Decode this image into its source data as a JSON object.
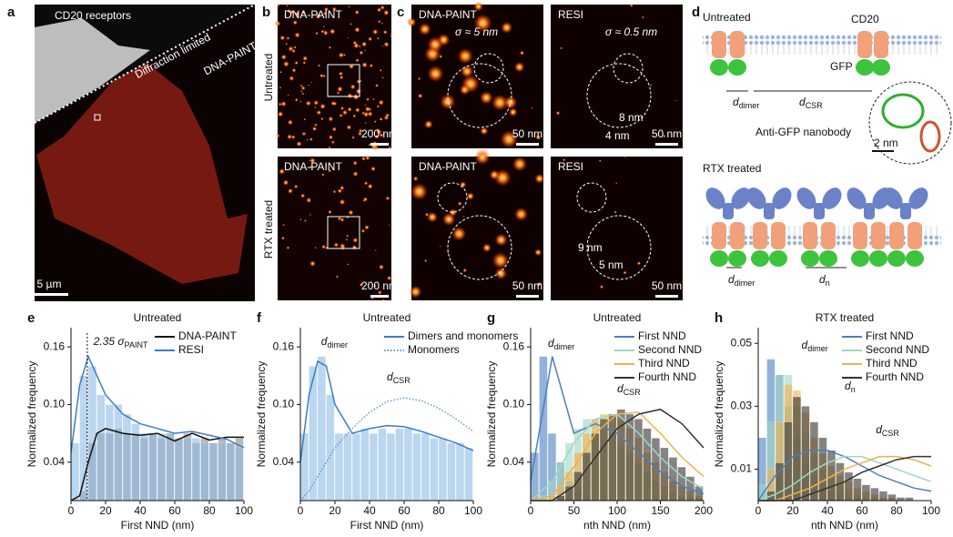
{
  "panels": {
    "a": {
      "label": "a",
      "receptors": "CD20 receptors",
      "diffraction": "Diffraction limited",
      "paint": "DNA-PAINT",
      "scale": "5 µm"
    },
    "b": {
      "label": "b",
      "top_title": "DNA-PAINT",
      "bottom_title": "DNA-PAINT",
      "untreated": "Untreated",
      "rtx": "RTX treated",
      "scale_top": "200 nm",
      "scale_bottom": "200 nm"
    },
    "c": {
      "label": "c",
      "paint_top": "DNA-PAINT",
      "resi_top": "RESI",
      "sigma_paint": "σ ≈ 5 nm",
      "sigma_resi": "σ ≈ 0.5 nm",
      "paint_bottom": "DNA-PAINT",
      "resi_bottom": "RESI",
      "scales": [
        "50 nm",
        "50 nm",
        "50 nm",
        "50 nm"
      ],
      "distances": [
        "8 nm",
        "4 nm",
        "9 nm",
        "5 nm"
      ]
    },
    "d": {
      "label": "d",
      "untreated": "Untreated",
      "cd20": "CD20",
      "gfp": "GFP",
      "d_dimer_top": {
        "main": "d",
        "sub": "dimer"
      },
      "d_csr": {
        "main": "d",
        "sub": "CSR"
      },
      "nanobody": "Anti-GFP nanobody",
      "scale": "2 nm",
      "rtx": "RTX treated",
      "d_dimer_bottom": {
        "main": "d",
        "sub": "dimer"
      },
      "d_n": {
        "main": "d",
        "sub": "n"
      }
    }
  },
  "chart_data": [
    {
      "type": "histogram",
      "label": "e",
      "title": "Untreated",
      "xlabel": "First NND (nm)",
      "ylabel": "Normalized frequency",
      "xlim": [
        0,
        100
      ],
      "xticks": [
        0,
        20,
        40,
        60,
        80,
        100
      ],
      "ylim": [
        0,
        0.18
      ],
      "yticks": [
        0.04,
        {
          "value": 0.1,
          "label": "0.10"
        },
        0.16
      ],
      "legend": "upper right",
      "bins": [
        0,
        5,
        10,
        15,
        20,
        25,
        30,
        35,
        40,
        45,
        50,
        55,
        60,
        65,
        70,
        75,
        80,
        85,
        90,
        95,
        100
      ],
      "series": [
        {
          "name": "DNA-PAINT",
          "color": "#111111",
          "bar_color": "#8a8a8a",
          "values": [
            0,
            0.01,
            0.06,
            0.07,
            0.07,
            0.075,
            0.07,
            0.07,
            0.065,
            0.07,
            0.065,
            0.07,
            0.065,
            0.07,
            0.06,
            0.065,
            0.06,
            0.065,
            0.06,
            0.065
          ],
          "fit_x": [
            0,
            5,
            10,
            15,
            20,
            30,
            40,
            50,
            60,
            70,
            80,
            90,
            100
          ],
          "fit": [
            0,
            0.005,
            0.04,
            0.07,
            0.075,
            0.07,
            0.068,
            0.07,
            0.062,
            0.07,
            0.063,
            0.066,
            0.066
          ]
        },
        {
          "name": "RESI",
          "color": "#3a7dc9",
          "bar_color": "#8fbbe6",
          "values": [
            0.06,
            0.13,
            0.14,
            0.11,
            0.1,
            0.1,
            0.09,
            0.08,
            0.07,
            0.07,
            0.07,
            0.07,
            0.065,
            0.065,
            0.065,
            0.06,
            0.06,
            0.06,
            0.06,
            0.055
          ],
          "fit_x": [
            0,
            5,
            10,
            15,
            20,
            30,
            40,
            50,
            60,
            70,
            80,
            90,
            100
          ],
          "fit": [
            0.05,
            0.12,
            0.15,
            0.13,
            0.11,
            0.09,
            0.08,
            0.075,
            0.07,
            0.072,
            0.068,
            0.064,
            0.055
          ]
        }
      ],
      "annotations": [
        {
          "main": "2.35 σ",
          "sub": "PAINT"
        }
      ]
    },
    {
      "type": "histogram",
      "label": "f",
      "title": "Untreated",
      "xlabel": "First NND (nm)",
      "ylabel": "Normalized frequency",
      "xlim": [
        0,
        100
      ],
      "xticks": [
        0,
        20,
        40,
        60,
        80,
        100
      ],
      "ylim": [
        0,
        0.18
      ],
      "yticks": [
        0.04,
        {
          "value": 0.1,
          "label": "0.10"
        },
        0.16
      ],
      "legend": "upper right",
      "bins": [
        0,
        5,
        10,
        15,
        20,
        25,
        30,
        35,
        40,
        45,
        50,
        55,
        60,
        65,
        70,
        75,
        80,
        85,
        90,
        95,
        100
      ],
      "series": [
        {
          "name": "Dimers and monomers",
          "color": "#3a7dc9",
          "bar_color": "#8fbbe6",
          "values": [
            0.07,
            0.14,
            0.15,
            0.11,
            0.07,
            0.07,
            0.07,
            0.075,
            0.07,
            0.075,
            0.07,
            0.075,
            0.075,
            0.07,
            0.07,
            0.065,
            0.065,
            0.06,
            0.06,
            0.055
          ],
          "fit_x": [
            0,
            5,
            10,
            15,
            20,
            30,
            40,
            50,
            60,
            70,
            80,
            90,
            100
          ],
          "fit": [
            0.04,
            0.11,
            0.145,
            0.14,
            0.1,
            0.07,
            0.075,
            0.078,
            0.077,
            0.072,
            0.066,
            0.06,
            0.052
          ]
        },
        {
          "name": "Monomers",
          "color": "#5a9ad6",
          "dotted": true,
          "fit_x": [
            0,
            5,
            10,
            15,
            20,
            30,
            40,
            50,
            60,
            70,
            80,
            90,
            100
          ],
          "fit": [
            0,
            0.01,
            0.025,
            0.04,
            0.055,
            0.075,
            0.092,
            0.103,
            0.107,
            0.104,
            0.096,
            0.085,
            0.072
          ]
        }
      ],
      "annotations": [
        {
          "main": "d",
          "sub": "dimer"
        },
        {
          "main": "d",
          "sub": "CSR"
        }
      ]
    },
    {
      "type": "histogram",
      "label": "g",
      "title": "Untreated",
      "xlabel": "nth NND (nm)",
      "ylabel": "Normalized frequency",
      "xlim": [
        0,
        200
      ],
      "xticks": [
        0,
        50,
        100,
        150,
        200
      ],
      "ylim": [
        0,
        0.18
      ],
      "yticks": [
        0.04,
        {
          "value": 0.1,
          "label": "0.10"
        },
        0.16
      ],
      "legend": "upper right",
      "bins": [
        0,
        10,
        20,
        30,
        40,
        50,
        60,
        70,
        80,
        90,
        100,
        110,
        120,
        130,
        140,
        150,
        160,
        170,
        180,
        190,
        200
      ],
      "series": [
        {
          "name": "First NND",
          "color": "#4a7fc1",
          "values": [
            0.05,
            0.15,
            0.07,
            0.04,
            0.02,
            0.01,
            0.005,
            0,
            0,
            0,
            0,
            0,
            0,
            0,
            0,
            0,
            0,
            0,
            0,
            0
          ],
          "fit_x": [
            0,
            25,
            50,
            75,
            100,
            125,
            150,
            175,
            200
          ],
          "fit": [
            0.02,
            0.15,
            0.07,
            0.08,
            0.07,
            0.05,
            0.03,
            0.015,
            0.007
          ]
        },
        {
          "name": "Second NND",
          "color": "#9fd6c4",
          "values": [
            0,
            0.005,
            0.02,
            0.04,
            0.06,
            0.075,
            0.085,
            0.085,
            0.08,
            0.07,
            0.06,
            0.05,
            0.04,
            0.03,
            0.02,
            0.015,
            0.01,
            0.005,
            0.003,
            0.002
          ],
          "fit_x": [
            0,
            25,
            50,
            75,
            100,
            125,
            150,
            175,
            200
          ],
          "fit": [
            0,
            0.02,
            0.06,
            0.085,
            0.09,
            0.07,
            0.045,
            0.025,
            0.012
          ]
        },
        {
          "name": "Third NND",
          "color": "#f2b04a",
          "values": [
            0,
            0,
            0.005,
            0.015,
            0.03,
            0.05,
            0.07,
            0.085,
            0.09,
            0.09,
            0.085,
            0.075,
            0.065,
            0.05,
            0.04,
            0.03,
            0.02,
            0.015,
            0.01,
            0.005
          ],
          "fit_x": [
            0,
            25,
            50,
            75,
            100,
            125,
            150,
            175,
            200
          ],
          "fit": [
            0,
            0.005,
            0.035,
            0.07,
            0.09,
            0.092,
            0.07,
            0.045,
            0.025
          ]
        },
        {
          "name": "Fourth NND",
          "color": "#333333",
          "values": [
            0,
            0,
            0,
            0.005,
            0.015,
            0.03,
            0.05,
            0.07,
            0.085,
            0.09,
            0.095,
            0.09,
            0.085,
            0.075,
            0.065,
            0.055,
            0.045,
            0.035,
            0.025,
            0.015
          ],
          "fit_x": [
            0,
            25,
            50,
            75,
            100,
            125,
            150,
            175,
            200
          ],
          "fit": [
            0,
            0,
            0.015,
            0.045,
            0.075,
            0.09,
            0.095,
            0.08,
            0.055
          ]
        }
      ],
      "annotations": [
        {
          "main": "d",
          "sub": "dimer"
        },
        {
          "main": "d",
          "sub": "CSR"
        }
      ]
    },
    {
      "type": "histogram",
      "label": "h",
      "title": "RTX treated",
      "xlabel": "nth NND (nm)",
      "ylabel": "Normalized frequency",
      "xlim": [
        0,
        100
      ],
      "xticks": [
        0,
        20,
        40,
        60,
        80,
        100
      ],
      "ylim": [
        0,
        0.055
      ],
      "yticks": [
        0.01,
        0.03,
        0.05
      ],
      "legend": "upper right",
      "bins": [
        0,
        5,
        10,
        15,
        20,
        25,
        30,
        35,
        40,
        45,
        50,
        55,
        60,
        65,
        70,
        75,
        80,
        85,
        90,
        95,
        100
      ],
      "series": [
        {
          "name": "First NND",
          "color": "#4a7fc1",
          "values": [
            0.02,
            0.045,
            0.04,
            0.03,
            0.02,
            0.012,
            0.008,
            0.005,
            0.003,
            0.002,
            0.001,
            0.001,
            0,
            0,
            0,
            0,
            0,
            0,
            0,
            0
          ],
          "fit_x": [
            0,
            10,
            20,
            30,
            40,
            50,
            60,
            70,
            80,
            90,
            100
          ],
          "fit": [
            0,
            0.008,
            0.014,
            0.016,
            0.016,
            0.014,
            0.011,
            0.008,
            0.006,
            0.004,
            0.003
          ]
        },
        {
          "name": "Second NND",
          "color": "#9fd6c4",
          "values": [
            0.005,
            0.025,
            0.04,
            0.04,
            0.03,
            0.022,
            0.015,
            0.01,
            0.007,
            0.005,
            0.003,
            0.002,
            0.001,
            0.001,
            0,
            0,
            0,
            0,
            0,
            0
          ],
          "fit_x": [
            0,
            10,
            20,
            30,
            40,
            50,
            60,
            70,
            80,
            90,
            100
          ],
          "fit": [
            0,
            0.002,
            0.005,
            0.009,
            0.012,
            0.014,
            0.014,
            0.012,
            0.01,
            0.008,
            0.006
          ]
        },
        {
          "name": "Third NND",
          "color": "#f2b04a",
          "values": [
            0,
            0.01,
            0.025,
            0.037,
            0.035,
            0.028,
            0.02,
            0.015,
            0.011,
            0.008,
            0.006,
            0.004,
            0.003,
            0.002,
            0.001,
            0.001,
            0,
            0,
            0,
            0
          ],
          "fit_x": [
            0,
            10,
            20,
            30,
            40,
            50,
            60,
            70,
            80,
            90,
            100
          ],
          "fit": [
            0,
            0,
            0.002,
            0.004,
            0.007,
            0.01,
            0.012,
            0.014,
            0.014,
            0.013,
            0.011
          ]
        },
        {
          "name": "Fourth NND",
          "color": "#333333",
          "values": [
            0,
            0.003,
            0.012,
            0.025,
            0.033,
            0.03,
            0.025,
            0.02,
            0.016,
            0.012,
            0.009,
            0.007,
            0.005,
            0.004,
            0.003,
            0.002,
            0.001,
            0.001,
            0,
            0
          ],
          "fit_x": [
            0,
            10,
            20,
            30,
            40,
            50,
            60,
            70,
            80,
            90,
            100
          ],
          "fit": [
            0,
            0,
            0,
            0.002,
            0.004,
            0.006,
            0.009,
            0.011,
            0.013,
            0.014,
            0.014
          ]
        }
      ],
      "annotations": [
        {
          "main": "d",
          "sub": "dimer"
        },
        {
          "main": "d",
          "sub": "n"
        },
        {
          "main": "d",
          "sub": "CSR"
        }
      ]
    }
  ]
}
